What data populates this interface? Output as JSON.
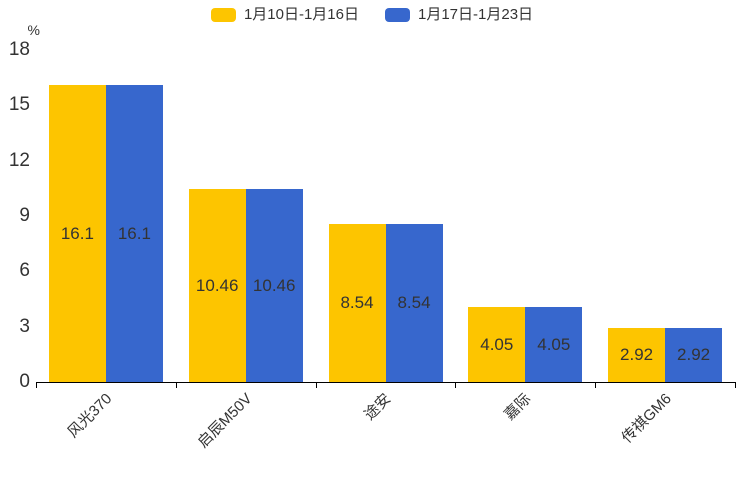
{
  "chart_data": {
    "type": "bar",
    "title": "",
    "categories": [
      "风光370",
      "启辰M50V",
      "途安",
      "嘉际",
      "传祺GM6"
    ],
    "series": [
      {
        "name": "1月10日-1月16日",
        "color": "#FDC500",
        "values": [
          16.1,
          10.46,
          8.54,
          4.05,
          2.92
        ]
      },
      {
        "name": "1月17日-1月23日",
        "color": "#3767CD",
        "values": [
          16.1,
          10.46,
          8.54,
          4.05,
          2.92
        ]
      }
    ],
    "xlabel": "",
    "ylabel": "%",
    "y_ticks": [
      0,
      3,
      6,
      9,
      12,
      15,
      18
    ],
    "ylim": [
      0,
      18
    ],
    "grid": false,
    "legend_position": "top-center",
    "value_labels": "inside-center",
    "text_color": "#333333",
    "axis_color": "#000000"
  }
}
